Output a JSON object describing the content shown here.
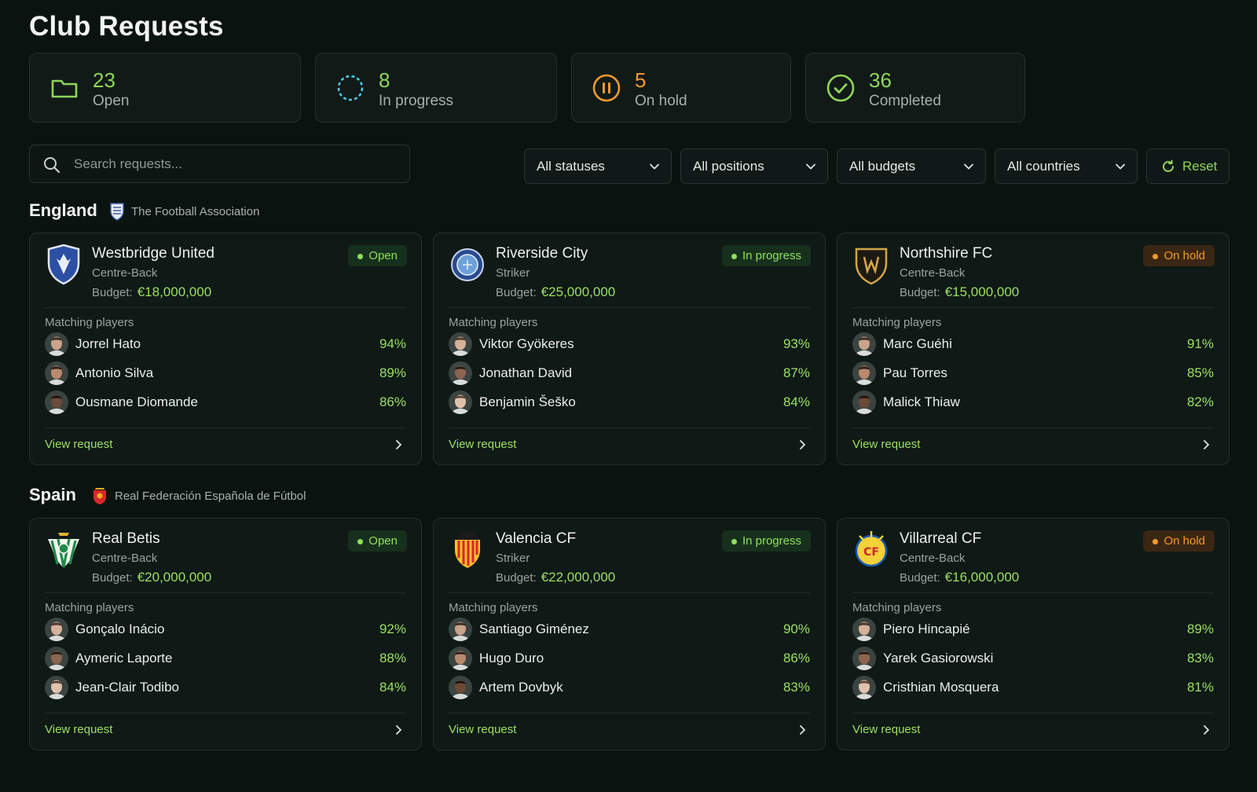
{
  "page": {
    "title": "Club Requests"
  },
  "stats": [
    {
      "key": "open",
      "value": "23",
      "label": "Open",
      "icon": "folder-icon",
      "color": "#8fd65a"
    },
    {
      "key": "progress",
      "value": "8",
      "label": "In progress",
      "icon": "progress-spinner-icon",
      "color": "#4fc7e8"
    },
    {
      "key": "hold",
      "value": "5",
      "label": "On hold",
      "icon": "pause-circle-icon",
      "color": "#f39a2b"
    },
    {
      "key": "completed",
      "value": "36",
      "label": "Completed",
      "icon": "check-circle-icon",
      "color": "#8fd65a"
    }
  ],
  "search": {
    "placeholder": "Search requests...",
    "value": ""
  },
  "filters": [
    {
      "label": "All statuses"
    },
    {
      "label": "All positions"
    },
    {
      "label": "All budgets"
    },
    {
      "label": "All countries"
    }
  ],
  "reset_label": "Reset",
  "budget_label": "Budget:",
  "matching_label": "Matching players",
  "view_request_label": "View request",
  "groups": [
    {
      "country": "England",
      "federation": "The Football Association",
      "clubs": [
        {
          "name": "Westbridge United",
          "position": "Centre-Back",
          "budget": "€18,000,000",
          "status": "Open",
          "status_key": "open",
          "players": [
            {
              "name": "Jorrel Hato",
              "match": "94%"
            },
            {
              "name": "Antonio Silva",
              "match": "89%"
            },
            {
              "name": "Ousmane Diomande",
              "match": "86%"
            }
          ]
        },
        {
          "name": "Riverside City",
          "position": "Striker",
          "budget": "€25,000,000",
          "status": "In progress",
          "status_key": "progress",
          "players": [
            {
              "name": "Viktor Gyökeres",
              "match": "93%"
            },
            {
              "name": "Jonathan David",
              "match": "87%"
            },
            {
              "name": "Benjamin Šeško",
              "match": "84%"
            }
          ]
        },
        {
          "name": "Northshire FC",
          "position": "Centre-Back",
          "budget": "€15,000,000",
          "status": "On hold",
          "status_key": "hold",
          "players": [
            {
              "name": "Marc Guéhi",
              "match": "91%"
            },
            {
              "name": "Pau Torres",
              "match": "85%"
            },
            {
              "name": "Malick Thiaw",
              "match": "82%"
            }
          ]
        }
      ]
    },
    {
      "country": "Spain",
      "federation": "Real Federación Española de Fútbol",
      "clubs": [
        {
          "name": "Real Betis",
          "position": "Centre-Back",
          "budget": "€20,000,000",
          "status": "Open",
          "status_key": "open",
          "players": [
            {
              "name": "Gonçalo Inácio",
              "match": "92%"
            },
            {
              "name": "Aymeric Laporte",
              "match": "88%"
            },
            {
              "name": "Jean-Clair Todibo",
              "match": "84%"
            }
          ]
        },
        {
          "name": "Valencia CF",
          "position": "Striker",
          "budget": "€22,000,000",
          "status": "In progress",
          "status_key": "progress",
          "players": [
            {
              "name": "Santiago Giménez",
              "match": "90%"
            },
            {
              "name": "Hugo Duro",
              "match": "86%"
            },
            {
              "name": "Artem Dovbyk",
              "match": "83%"
            }
          ]
        },
        {
          "name": "Villarreal CF",
          "position": "Centre-Back",
          "budget": "€16,000,000",
          "status": "On hold",
          "status_key": "hold",
          "players": [
            {
              "name": "Piero Hincapié",
              "match": "89%"
            },
            {
              "name": "Yarek Gasiorowski",
              "match": "83%"
            },
            {
              "name": "Cristhian Mosquera",
              "match": "81%"
            }
          ]
        }
      ]
    }
  ]
}
